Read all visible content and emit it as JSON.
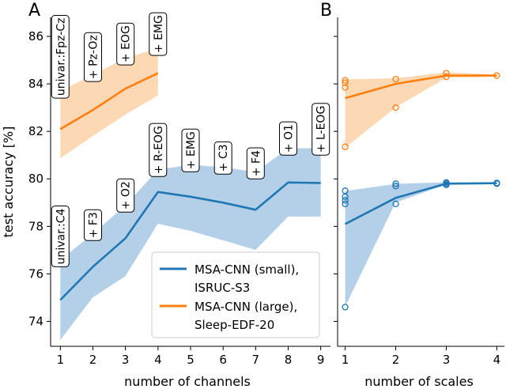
{
  "colors": {
    "blue": "#1f77b4",
    "blue_fill": "#a6c8e4",
    "orange": "#ff7f0e",
    "orange_fill": "#fdd1a8"
  },
  "legend": {
    "entries": [
      {
        "line1": "MSA-CNN (small),",
        "line2": "ISRUC-S3",
        "color_key": "blue"
      },
      {
        "line1": "MSA-CNN (large),",
        "line2": "Sleep-EDF-20",
        "color_key": "orange"
      }
    ]
  },
  "chart_data": [
    {
      "panel_label": "A",
      "type": "line",
      "xlabel": "number of channels",
      "ylabel": "test accuracy [%]",
      "xlim": [
        0.7,
        9.3
      ],
      "ylim": [
        72.95,
        86.8
      ],
      "xticks": [
        1,
        2,
        3,
        4,
        5,
        6,
        7,
        8,
        9
      ],
      "yticks": [
        74,
        76,
        78,
        80,
        82,
        84,
        86
      ],
      "series": [
        {
          "name": "MSA-CNN (small), ISRUC-S3",
          "color_key": "blue",
          "x": [
            1,
            2,
            3,
            4,
            5,
            6,
            7,
            8,
            9
          ],
          "y": [
            74.9,
            76.3,
            77.5,
            79.45,
            79.25,
            79.0,
            78.7,
            79.85,
            79.83
          ],
          "band_low": [
            73.2,
            75.0,
            75.9,
            78.1,
            77.8,
            77.4,
            77.0,
            78.4,
            78.4
          ],
          "band_high": [
            76.6,
            77.7,
            78.9,
            80.4,
            80.6,
            80.5,
            80.3,
            81.3,
            81.3
          ],
          "annotations": [
            {
              "x": 1,
              "text": "univar.:C4"
            },
            {
              "x": 2,
              "text": "+ F3"
            },
            {
              "x": 3,
              "text": "+ O2"
            },
            {
              "x": 4,
              "text": "+ R-EOG"
            },
            {
              "x": 5,
              "text": "+ EMG"
            },
            {
              "x": 6,
              "text": "+ C3"
            },
            {
              "x": 7,
              "text": "+ F4"
            },
            {
              "x": 8,
              "text": "+ O1"
            },
            {
              "x": 9,
              "text": "+ L-EOG"
            }
          ]
        },
        {
          "name": "MSA-CNN (large), Sleep-EDF-20",
          "color_key": "orange",
          "x": [
            1,
            2,
            3,
            4
          ],
          "y": [
            82.1,
            82.9,
            83.8,
            84.45
          ],
          "band_low": [
            80.85,
            81.8,
            82.7,
            83.5
          ],
          "band_high": [
            83.7,
            84.4,
            85.1,
            85.5
          ],
          "annotations": [
            {
              "x": 1,
              "text": "univar.:Fpz-Cz"
            },
            {
              "x": 2,
              "text": "+ Pz-Oz"
            },
            {
              "x": 3,
              "text": "+ EOG"
            },
            {
              "x": 4,
              "text": "+ EMG"
            }
          ]
        }
      ]
    },
    {
      "panel_label": "B",
      "type": "line",
      "xlabel": "number of scales",
      "ylabel": "",
      "xlim": [
        0.85,
        4.15
      ],
      "ylim": [
        72.95,
        86.8
      ],
      "xticks": [
        1,
        2,
        3,
        4
      ],
      "series": [
        {
          "name": "MSA-CNN (small), ISRUC-S3",
          "color_key": "blue",
          "x": [
            1,
            2,
            3,
            4
          ],
          "y": [
            78.1,
            79.2,
            79.8,
            79.82
          ],
          "band_low": [
            74.6,
            79.0,
            79.75,
            79.8
          ],
          "band_high": [
            79.5,
            79.8,
            79.87,
            79.84
          ],
          "points": [
            [
              1,
              74.6
            ],
            [
              1,
              78.95
            ],
            [
              1,
              79.1
            ],
            [
              1,
              79.25
            ],
            [
              1,
              79.5
            ],
            [
              2,
              78.95
            ],
            [
              2,
              79.7
            ],
            [
              2,
              79.8
            ],
            [
              3,
              79.75
            ],
            [
              3,
              79.8
            ],
            [
              3,
              79.85
            ],
            [
              4,
              79.8
            ],
            [
              4,
              79.83
            ]
          ]
        },
        {
          "name": "MSA-CNN (large), Sleep-EDF-20",
          "color_key": "orange",
          "x": [
            1,
            2,
            3,
            4
          ],
          "y": [
            83.4,
            84.0,
            84.35,
            84.35
          ],
          "band_low": [
            81.3,
            83.0,
            84.25,
            84.3
          ],
          "band_high": [
            84.2,
            84.25,
            84.5,
            84.4
          ],
          "points": [
            [
              1,
              81.35
            ],
            [
              1,
              83.85
            ],
            [
              1,
              84.05
            ],
            [
              1,
              84.15
            ],
            [
              2,
              83.0
            ],
            [
              2,
              84.2
            ],
            [
              3,
              84.3
            ],
            [
              3,
              84.45
            ],
            [
              4,
              84.35
            ]
          ]
        }
      ]
    }
  ]
}
